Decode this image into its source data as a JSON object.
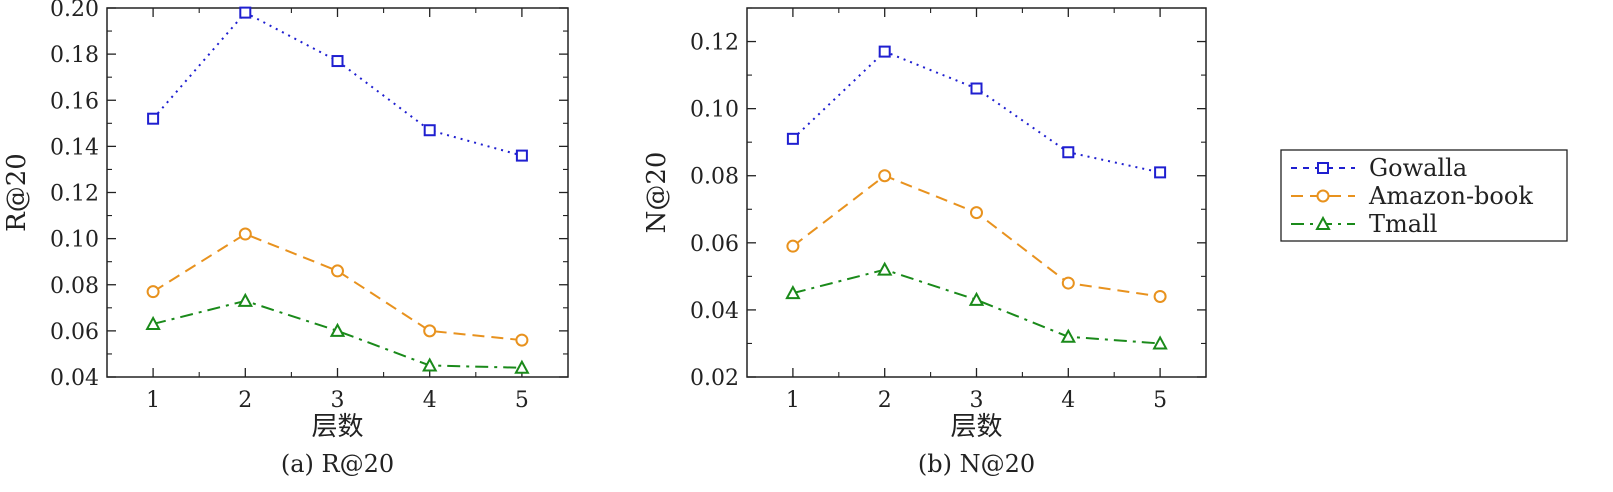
{
  "chart_data": [
    {
      "type": "line",
      "caption": "(a) R@20",
      "xlabel": "层数",
      "ylabel": "R@20",
      "x": [
        1,
        2,
        3,
        4,
        5
      ],
      "xticks": [
        "1",
        "2",
        "3",
        "4",
        "5"
      ],
      "xlim": [
        0.5,
        5.5
      ],
      "ylim": [
        0.04,
        0.2
      ],
      "yticks": [
        "0.04",
        "0.06",
        "0.08",
        "0.10",
        "0.12",
        "0.14",
        "0.16",
        "0.18",
        "0.20"
      ],
      "series": [
        {
          "name": "Gowalla",
          "values": [
            0.152,
            0.198,
            0.177,
            0.147,
            0.136
          ]
        },
        {
          "name": "Amazon-book",
          "values": [
            0.077,
            0.102,
            0.086,
            0.06,
            0.056
          ]
        },
        {
          "name": "Tmall",
          "values": [
            0.063,
            0.073,
            0.06,
            0.045,
            0.044
          ]
        }
      ]
    },
    {
      "type": "line",
      "caption": "(b) N@20",
      "xlabel": "层数",
      "ylabel": "N@20",
      "x": [
        1,
        2,
        3,
        4,
        5
      ],
      "xticks": [
        "1",
        "2",
        "3",
        "4",
        "5"
      ],
      "xlim": [
        0.5,
        5.5
      ],
      "ylim": [
        0.02,
        0.13
      ],
      "yticks": [
        "0.02",
        "0.04",
        "0.06",
        "0.08",
        "0.10",
        "0.12"
      ],
      "series": [
        {
          "name": "Gowalla",
          "values": [
            0.091,
            0.117,
            0.106,
            0.087,
            0.081
          ]
        },
        {
          "name": "Amazon-book",
          "values": [
            0.059,
            0.08,
            0.069,
            0.048,
            0.044
          ]
        },
        {
          "name": "Tmall",
          "values": [
            0.045,
            0.052,
            0.043,
            0.032,
            0.03
          ]
        }
      ]
    }
  ],
  "legend": {
    "placement": "right",
    "entries": [
      {
        "name": "Gowalla",
        "color": "#1f1fd0",
        "marker": "square-marker",
        "line": "dotted"
      },
      {
        "name": "Amazon-book",
        "color": "#e8921e",
        "marker": "circle-marker",
        "line": "dashed"
      },
      {
        "name": "Tmall",
        "color": "#1a8a1a",
        "marker": "triangle-marker",
        "line": "dash-dot"
      }
    ]
  }
}
